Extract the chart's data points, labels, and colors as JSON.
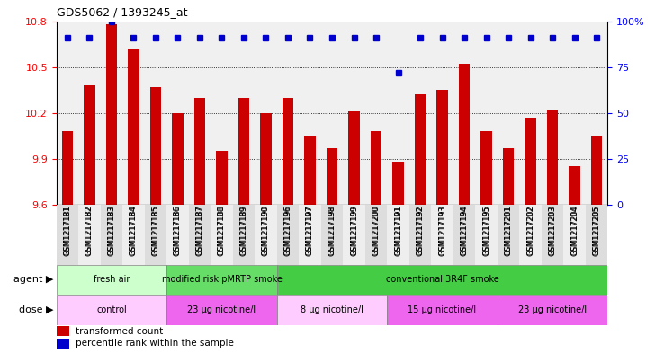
{
  "title": "GDS5062 / 1393245_at",
  "samples": [
    "GSM1217181",
    "GSM1217182",
    "GSM1217183",
    "GSM1217184",
    "GSM1217185",
    "GSM1217186",
    "GSM1217187",
    "GSM1217188",
    "GSM1217189",
    "GSM1217190",
    "GSM1217196",
    "GSM1217197",
    "GSM1217198",
    "GSM1217199",
    "GSM1217200",
    "GSM1217191",
    "GSM1217192",
    "GSM1217193",
    "GSM1217194",
    "GSM1217195",
    "GSM1217201",
    "GSM1217202",
    "GSM1217203",
    "GSM1217204",
    "GSM1217205"
  ],
  "bar_values": [
    10.08,
    10.38,
    10.78,
    10.62,
    10.37,
    10.2,
    10.3,
    9.95,
    10.3,
    10.2,
    10.3,
    10.05,
    9.97,
    10.21,
    10.08,
    9.88,
    10.32,
    10.35,
    10.52,
    10.08,
    9.97,
    10.17,
    10.22,
    9.85,
    10.05
  ],
  "percentile_values": [
    91,
    91,
    100,
    91,
    91,
    91,
    91,
    91,
    91,
    91,
    91,
    91,
    91,
    91,
    91,
    72,
    91,
    91,
    91,
    91,
    91,
    91,
    91,
    91,
    91
  ],
  "ylim_left": [
    9.6,
    10.8
  ],
  "ylim_right": [
    0,
    100
  ],
  "yticks_left": [
    9.6,
    9.9,
    10.2,
    10.5,
    10.8
  ],
  "yticks_right": [
    0,
    25,
    50,
    75,
    100
  ],
  "bar_color": "#cc0000",
  "percentile_color": "#0000cc",
  "agent_groups": [
    {
      "label": "fresh air",
      "start": 0,
      "end": 5,
      "color": "#ccffcc"
    },
    {
      "label": "modified risk pMRTP smoke",
      "start": 5,
      "end": 10,
      "color": "#66dd66"
    },
    {
      "label": "conventional 3R4F smoke",
      "start": 10,
      "end": 25,
      "color": "#44cc44"
    }
  ],
  "dose_groups": [
    {
      "label": "control",
      "start": 0,
      "end": 5,
      "color": "#ffccff"
    },
    {
      "label": "23 μg nicotine/l",
      "start": 5,
      "end": 10,
      "color": "#ee66ee"
    },
    {
      "label": "8 μg nicotine/l",
      "start": 10,
      "end": 15,
      "color": "#ffccff"
    },
    {
      "label": "15 μg nicotine/l",
      "start": 15,
      "end": 20,
      "color": "#ee66ee"
    },
    {
      "label": "23 μg nicotine/l",
      "start": 20,
      "end": 25,
      "color": "#ee66ee"
    }
  ],
  "legend_items": [
    {
      "label": "transformed count",
      "color": "#cc0000"
    },
    {
      "label": "percentile rank within the sample",
      "color": "#0000cc"
    }
  ],
  "bg_color": "#f0f0f0"
}
